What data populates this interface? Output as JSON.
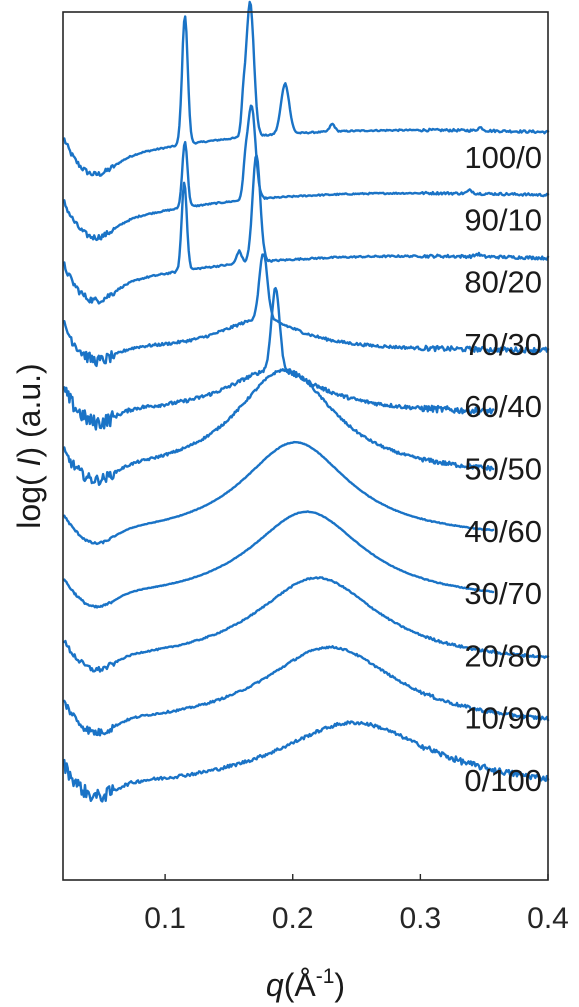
{
  "chart_data": {
    "type": "line",
    "title": "",
    "xlabel": "q(Å⁻¹)",
    "xlabel_parts": {
      "symbol": "q",
      "unit_base": "(Å",
      "unit_exp": "-1",
      "unit_close": ")"
    },
    "ylabel": "log( I) (a.u.)",
    "ylabel_parts": {
      "prefix": "log( ",
      "symbol": "I",
      "suffix": ") (a.u.)"
    },
    "xlim": [
      0.02,
      0.4
    ],
    "xticks": [
      0.1,
      0.2,
      0.3,
      0.4
    ],
    "xtick_labels": [
      "0.1",
      "0.2",
      "0.3",
      "0.4"
    ],
    "y_ticks_shown": false,
    "grid": false,
    "line_color": "#1a73c6",
    "series": [
      {
        "name": "100/0",
        "offset": 11,
        "noise": 0.05,
        "decay": 0.55,
        "broad": null,
        "q_end": 0.4,
        "peaks": [
          [
            0.1155,
            2.05,
            0.0022
          ],
          [
            0.1665,
            2.15,
            0.003
          ],
          [
            0.1612,
            0.4,
            0.0015
          ],
          [
            0.194,
            0.8,
            0.0032
          ],
          [
            0.231,
            0.12,
            0.002
          ],
          [
            0.347,
            0.05,
            0.002
          ]
        ]
      },
      {
        "name": "90/10",
        "offset": 10,
        "noise": 0.05,
        "decay": 0.55,
        "broad": null,
        "q_end": 0.4,
        "peaks": [
          [
            0.1155,
            1.05,
            0.002
          ],
          [
            0.1675,
            1.5,
            0.0032
          ],
          [
            0.1625,
            0.3,
            0.0015
          ],
          [
            0.339,
            0.05,
            0.002
          ]
        ]
      },
      {
        "name": "80/20",
        "offset": 9,
        "noise": 0.06,
        "decay": 0.55,
        "broad": null,
        "q_end": 0.4,
        "peaks": [
          [
            0.115,
            1.4,
            0.002
          ],
          [
            0.1715,
            1.7,
            0.003
          ],
          [
            0.158,
            0.2,
            0.002
          ],
          [
            0.345,
            0.04,
            0.002
          ]
        ]
      },
      {
        "name": "70/30",
        "offset": 8,
        "noise": 0.1,
        "decay": 0.4,
        "broad": [
          0.175,
          0.5,
          0.04
        ],
        "q_end": 0.4,
        "peaks": [
          [
            0.177,
            1.05,
            0.0032
          ]
        ]
      },
      {
        "name": "60/40",
        "offset": 7,
        "noise": 0.13,
        "decay": 0.35,
        "broad": [
          0.185,
          0.7,
          0.045
        ],
        "q_end": 0.357,
        "peaks": [
          [
            0.1865,
            1.3,
            0.0032
          ]
        ]
      },
      {
        "name": "50/50",
        "offset": 6,
        "noise": 0.09,
        "decay": 0.3,
        "broad": [
          0.194,
          1.7,
          0.048
        ],
        "q_end": 0.357,
        "peaks": []
      },
      {
        "name": "40/60",
        "offset": 5,
        "noise": 0.02,
        "decay": 0.3,
        "broad": [
          0.202,
          1.55,
          0.052
        ],
        "q_end": 0.357,
        "peaks": []
      },
      {
        "name": "30/70",
        "offset": 4,
        "noise": 0.02,
        "decay": 0.3,
        "broad": [
          0.211,
          1.45,
          0.055
        ],
        "q_end": 0.357,
        "peaks": []
      },
      {
        "name": "20/80",
        "offset": 3,
        "noise": 0.05,
        "decay": 0.3,
        "broad": [
          0.219,
          1.4,
          0.06
        ],
        "q_end": 0.4,
        "peaks": []
      },
      {
        "name": "10/90",
        "offset": 2,
        "noise": 0.07,
        "decay": 0.35,
        "broad": [
          0.229,
          1.3,
          0.065
        ],
        "q_end": 0.4,
        "peaks": []
      },
      {
        "name": "0/100",
        "offset": 1,
        "noise": 0.12,
        "decay": 0.35,
        "broad": [
          0.248,
          1.1,
          0.075
        ],
        "q_end": 0.4,
        "peaks": []
      }
    ]
  }
}
